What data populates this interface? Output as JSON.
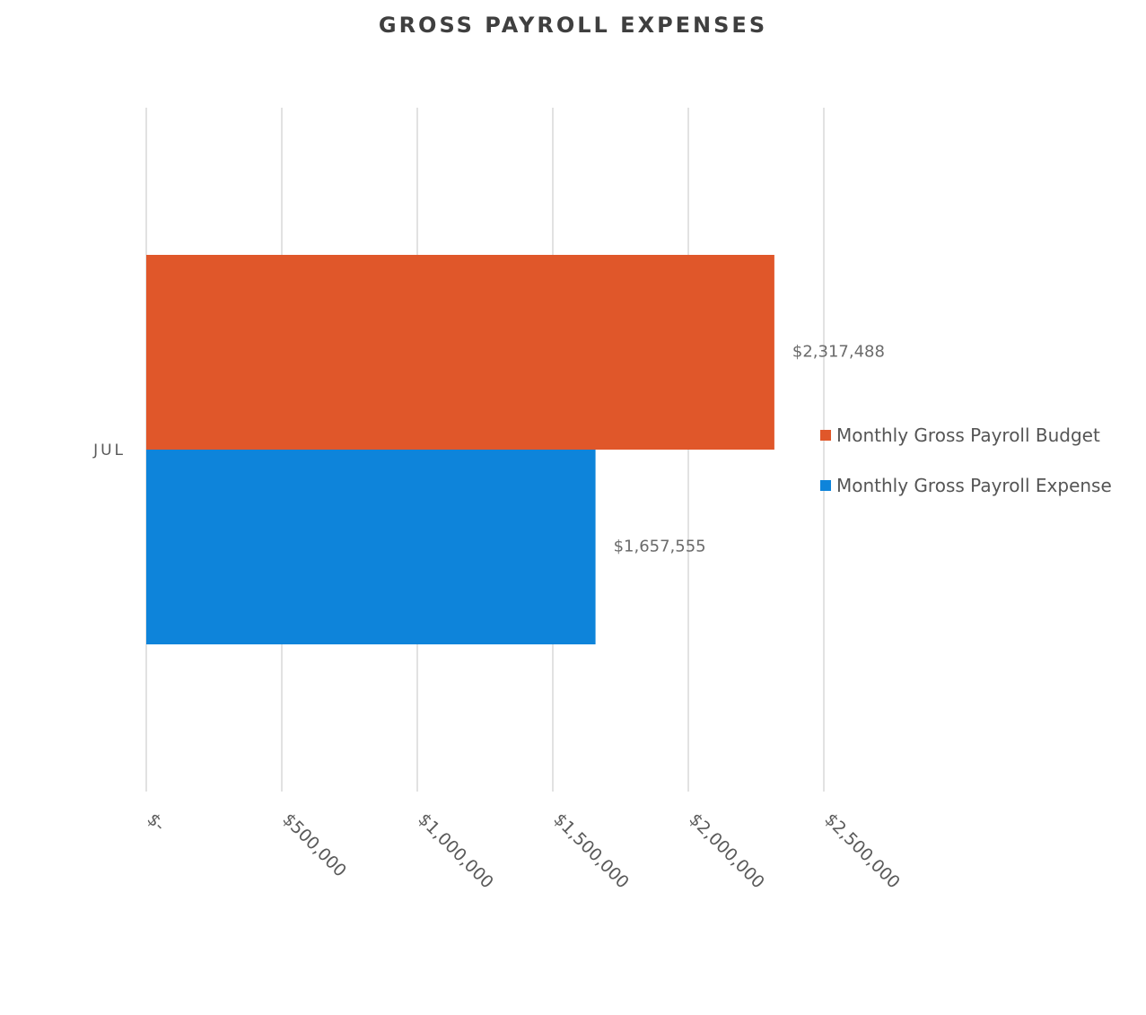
{
  "chart_data": {
    "type": "bar",
    "orientation": "horizontal",
    "title": "GROSS PAYROLL EXPENSES",
    "categories": [
      "JUL"
    ],
    "series": [
      {
        "name": "Monthly Gross Payroll Budget",
        "values": [
          2317488
        ],
        "color": "#e0572a",
        "data_label": "$2,317,488"
      },
      {
        "name": "Monthly Gross Payroll Expense",
        "values": [
          1657555
        ],
        "color": "#0e84da",
        "data_label": "$1,657,555"
      }
    ],
    "x_ticks": [
      {
        "value": 0,
        "label": "$-"
      },
      {
        "value": 500000,
        "label": "$500,000"
      },
      {
        "value": 1000000,
        "label": "$1,000,000"
      },
      {
        "value": 1500000,
        "label": "$1,500,000"
      },
      {
        "value": 2000000,
        "label": "$2,000,000"
      },
      {
        "value": 2500000,
        "label": "$2,500,000"
      }
    ],
    "xlim": [
      0,
      2500000
    ],
    "xlabel": "",
    "ylabel": "",
    "grid": true,
    "legend_position": "right"
  }
}
